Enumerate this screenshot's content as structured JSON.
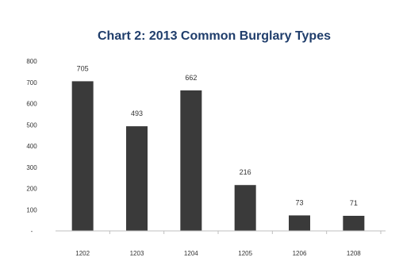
{
  "chart_data": {
    "type": "bar",
    "title": "Chart 2: 2013 Common Burglary Types",
    "categories": [
      "1202",
      "1203",
      "1204",
      "1205",
      "1206",
      "1208"
    ],
    "values": [
      705,
      493,
      662,
      216,
      73,
      71
    ],
    "data_labels": [
      "705",
      "493",
      "662",
      "216",
      "73",
      "71"
    ],
    "ylim": [
      0,
      800
    ],
    "yticks": [
      0,
      100,
      200,
      300,
      400,
      500,
      600,
      700,
      800
    ],
    "ytick_labels": [
      "-",
      "100",
      "200",
      "300",
      "400",
      "500",
      "600",
      "700",
      "800"
    ],
    "grid": false,
    "legend": "none",
    "bar_color": "#3a3a3a"
  }
}
